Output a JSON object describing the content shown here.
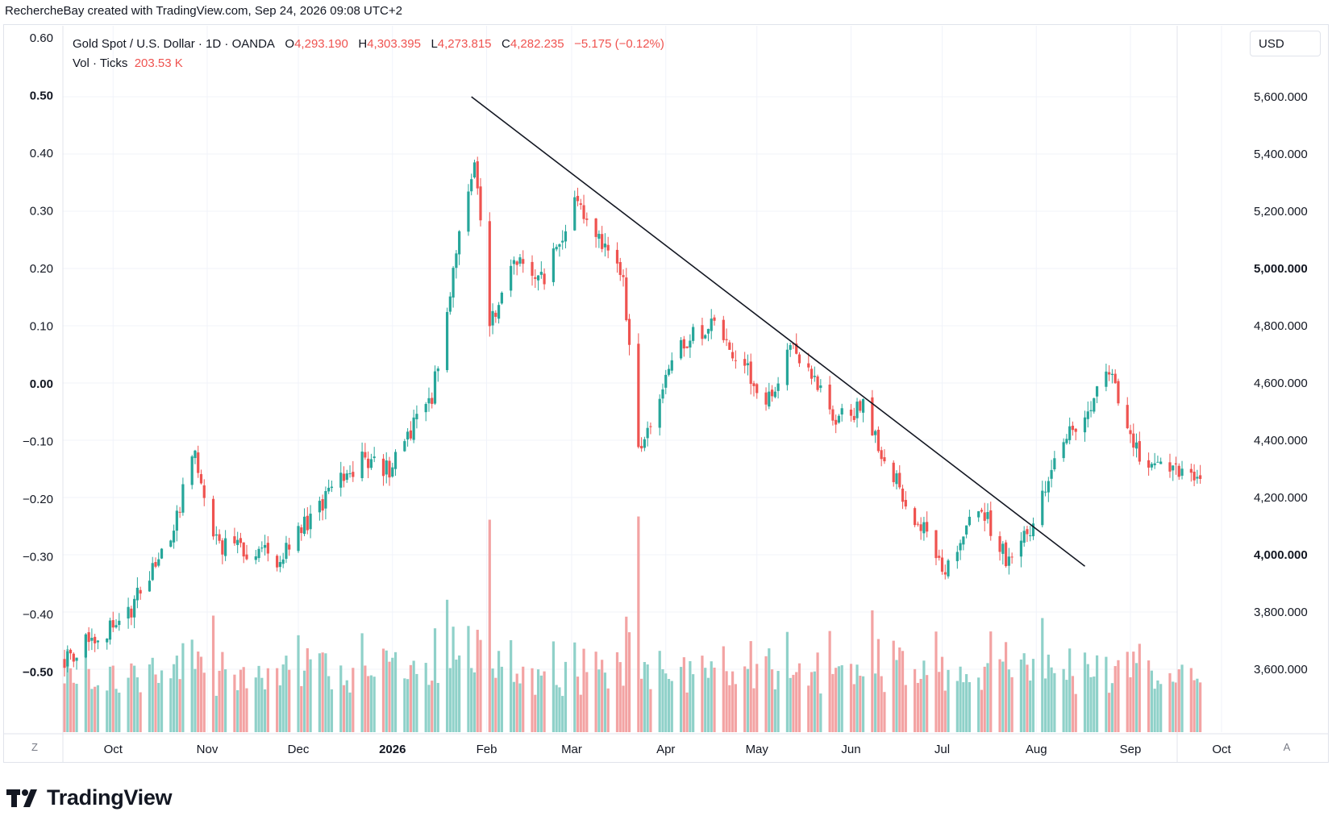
{
  "caption": "RechercheBay created with TradingView.com, Sep 24, 2026 09:08 UTC+2",
  "legend": {
    "symbol": "Gold Spot / U.S. Dollar · 1D · OANDA",
    "o_label": "O",
    "o_value": "4,293.190",
    "h_label": "H",
    "h_value": "4,303.395",
    "l_label": "L",
    "l_value": "4,273.815",
    "c_label": "C",
    "c_value": "4,282.235",
    "change": "−5.175 (−0.12%)",
    "vol_label": "Vol · Ticks",
    "vol_value": "203.53 K"
  },
  "currency_button": "USD",
  "left_button": "Z",
  "right_button": "A",
  "brand": "TradingView",
  "colors": {
    "up": "#26a69a",
    "down": "#ef5350",
    "vol_up": "#8fd1c9",
    "vol_down": "#f3a3a3",
    "grid": "#f0f3fa",
    "text": "#131722",
    "trendline": "#131722"
  },
  "chart_data": {
    "type": "candlestick",
    "title": "Gold Spot / U.S. Dollar",
    "interval": "1D",
    "source": "OANDA",
    "right_axis": {
      "unit": "USD",
      "ticks": [
        "3,600.000",
        "3,800.000",
        "4,000.000",
        "4,200.000",
        "4,400.000",
        "4,600.000",
        "4,800.000",
        "5,000.000",
        "5,200.000",
        "5,400.000",
        "5,600.000"
      ],
      "tick_values": [
        3600,
        3800,
        4000,
        4200,
        4400,
        4600,
        4800,
        5000,
        5200,
        5400,
        5600
      ],
      "bold_ticks": [
        "4,000.000",
        "5,000.000"
      ],
      "range": [
        3400,
        5800
      ]
    },
    "left_axis": {
      "ticks": [
        "0.60",
        "0.50",
        "0.40",
        "0.30",
        "0.20",
        "0.10",
        "0.00",
        "−0.10",
        "−0.20",
        "−0.30",
        "−0.40",
        "−0.50"
      ],
      "bold_ticks": [
        "0.50",
        "0.00",
        "−0.50"
      ]
    },
    "x_axis": {
      "ticks": [
        "Oct",
        "Nov",
        "Dec",
        "2026",
        "Feb",
        "Mar",
        "Apr",
        "May",
        "Jun",
        "Jul",
        "Aug",
        "Sep",
        "Oct"
      ],
      "bold_ticks": [
        "2026"
      ]
    },
    "grid": true,
    "legend_position": "top-left",
    "close_series": {
      "x": [
        "2025-09-15",
        "2025-10-06",
        "2025-10-20",
        "2025-10-28",
        "2025-11-04",
        "2025-11-24",
        "2025-12-22",
        "2025-12-31",
        "2026-01-14",
        "2026-01-28",
        "2026-02-02",
        "2026-02-10",
        "2026-02-20",
        "2026-03-02",
        "2026-03-18",
        "2026-03-23",
        "2026-04-07",
        "2026-04-16",
        "2026-05-05",
        "2026-05-12",
        "2026-05-26",
        "2026-06-05",
        "2026-06-12",
        "2026-06-24",
        "2026-07-02",
        "2026-07-13",
        "2026-07-22",
        "2026-07-31",
        "2026-08-03",
        "2026-08-10",
        "2026-08-25",
        "2026-09-04",
        "2026-09-15",
        "2026-09-24"
      ],
      "y": [
        3640,
        3790,
        4080,
        4350,
        4040,
        3990,
        4340,
        4300,
        4560,
        5400,
        4800,
        5030,
        4970,
        5230,
        4950,
        4380,
        4750,
        4800,
        4540,
        4750,
        4480,
        4510,
        4330,
        4100,
        3950,
        4180,
        3990,
        4100,
        4230,
        4400,
        4630,
        4330,
        4280,
        4282.235
      ]
    },
    "trendline": {
      "start": [
        "2026-01-27",
        5600
      ],
      "end": [
        "2026-08-17",
        3960
      ]
    },
    "last_candle": {
      "open": 4293.19,
      "high": 4303.395,
      "low": 4273.815,
      "close": 4282.235,
      "change": -5.175,
      "change_pct": -0.12
    },
    "volume_last": "203.53 K"
  }
}
